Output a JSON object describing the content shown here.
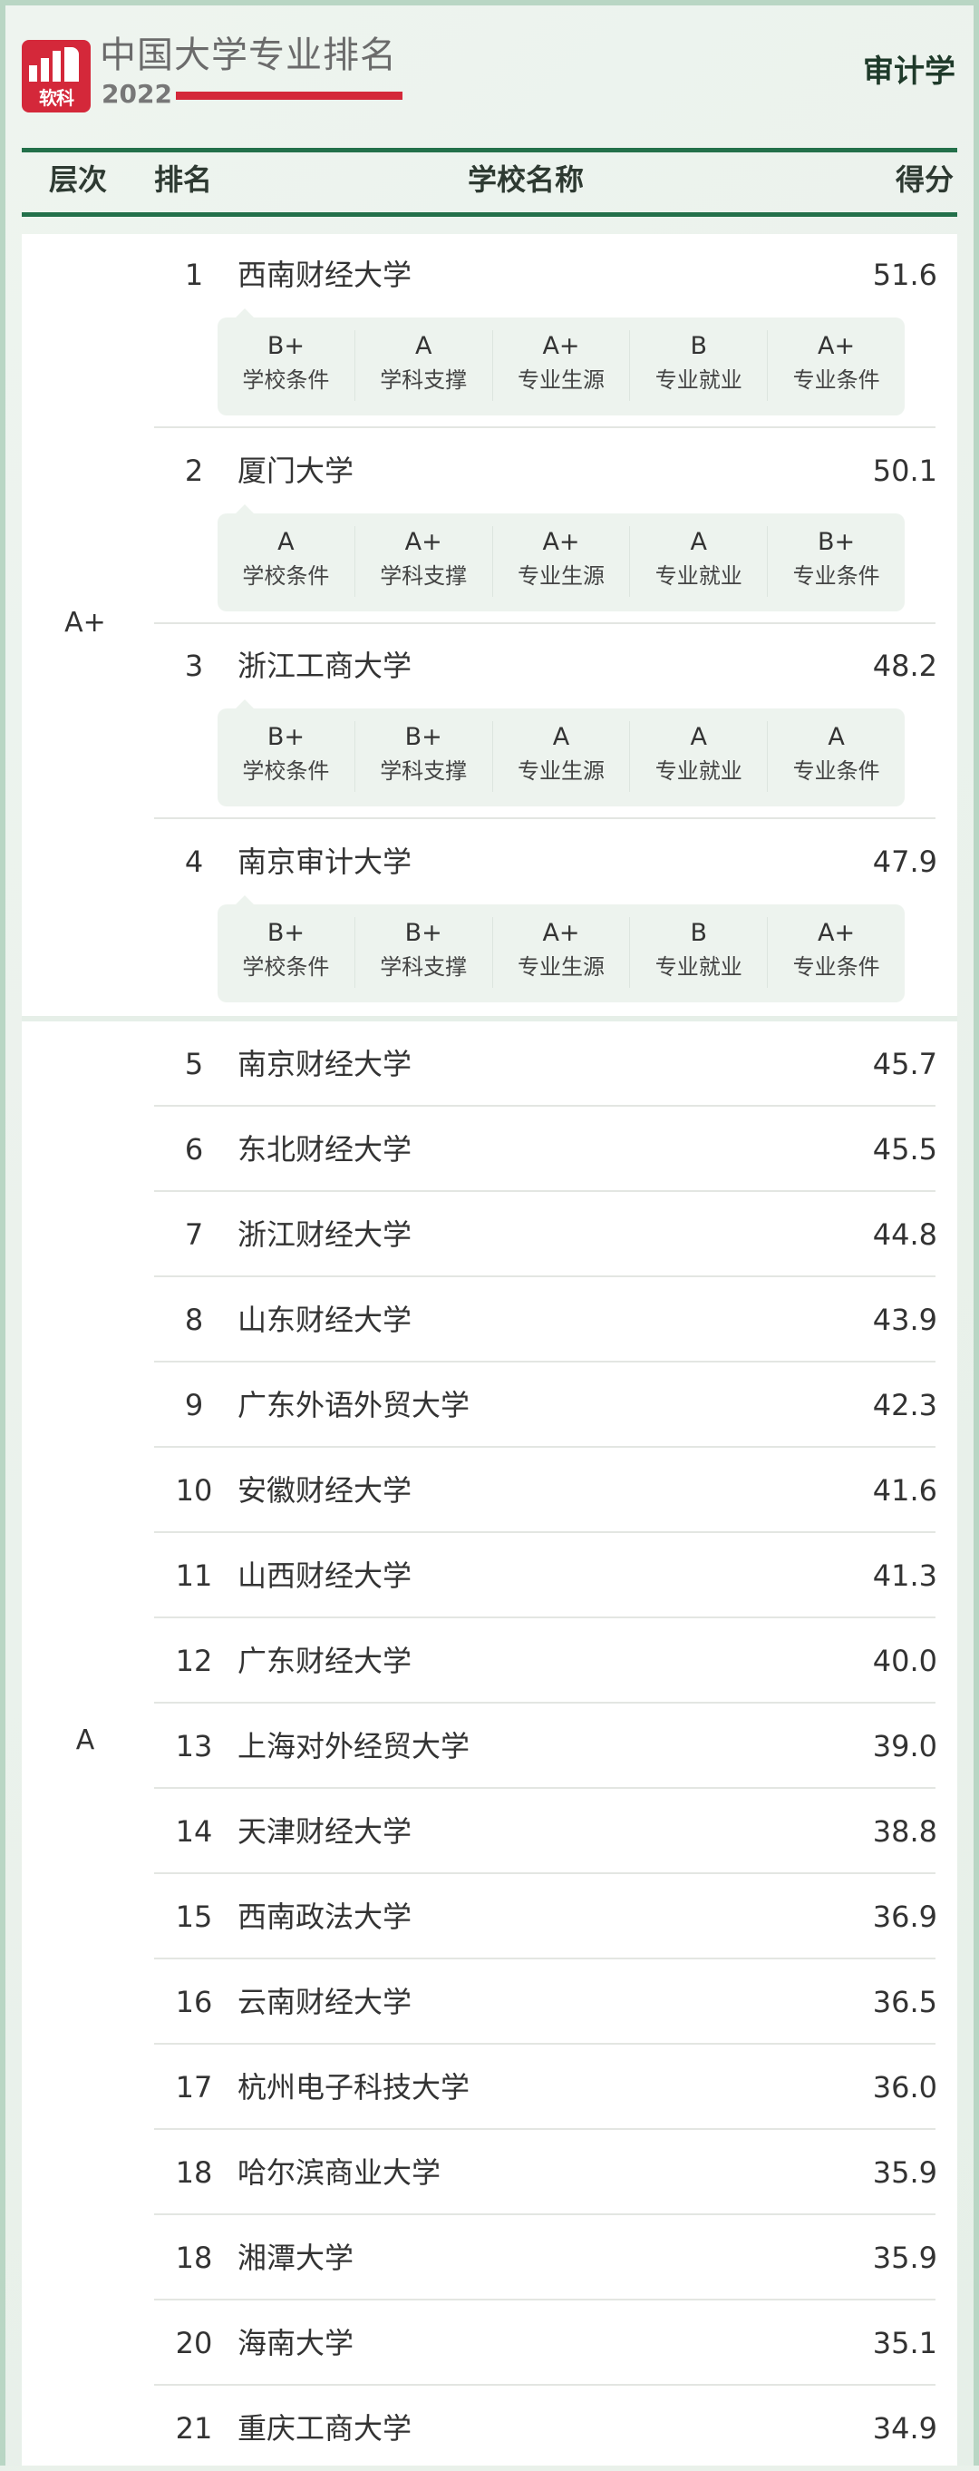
{
  "header": {
    "logo_text": "软科",
    "brand": "中国大学专业排名",
    "year": "2022",
    "subject": "审计学",
    "brand_color": "#d4283a",
    "accent_color": "#23704a"
  },
  "columns": {
    "tier": "层次",
    "rank": "排名",
    "name": "学校名称",
    "score": "得分"
  },
  "grade_labels": [
    "学校条件",
    "学科支撑",
    "专业生源",
    "专业就业",
    "专业条件"
  ],
  "groups": [
    {
      "tier": "A+",
      "rows": [
        {
          "rank": "1",
          "name": "西南财经大学",
          "score": "51.6",
          "grades": [
            "B+",
            "A",
            "A+",
            "B",
            "A+"
          ]
        },
        {
          "rank": "2",
          "name": "厦门大学",
          "score": "50.1",
          "grades": [
            "A",
            "A+",
            "A+",
            "A",
            "B+"
          ]
        },
        {
          "rank": "3",
          "name": "浙江工商大学",
          "score": "48.2",
          "grades": [
            "B+",
            "B+",
            "A",
            "A",
            "A"
          ]
        },
        {
          "rank": "4",
          "name": "南京审计大学",
          "score": "47.9",
          "grades": [
            "B+",
            "B+",
            "A+",
            "B",
            "A+"
          ]
        }
      ]
    },
    {
      "tier": "A",
      "rows": [
        {
          "rank": "5",
          "name": "南京财经大学",
          "score": "45.7"
        },
        {
          "rank": "6",
          "name": "东北财经大学",
          "score": "45.5"
        },
        {
          "rank": "7",
          "name": "浙江财经大学",
          "score": "44.8"
        },
        {
          "rank": "8",
          "name": "山东财经大学",
          "score": "43.9"
        },
        {
          "rank": "9",
          "name": "广东外语外贸大学",
          "score": "42.3"
        },
        {
          "rank": "10",
          "name": "安徽财经大学",
          "score": "41.6"
        },
        {
          "rank": "11",
          "name": "山西财经大学",
          "score": "41.3"
        },
        {
          "rank": "12",
          "name": "广东财经大学",
          "score": "40.0"
        },
        {
          "rank": "13",
          "name": "上海对外经贸大学",
          "score": "39.0"
        },
        {
          "rank": "14",
          "name": "天津财经大学",
          "score": "38.8"
        },
        {
          "rank": "15",
          "name": "西南政法大学",
          "score": "36.9"
        },
        {
          "rank": "16",
          "name": "云南财经大学",
          "score": "36.5"
        },
        {
          "rank": "17",
          "name": "杭州电子科技大学",
          "score": "36.0"
        },
        {
          "rank": "18",
          "name": "哈尔滨商业大学",
          "score": "35.9"
        },
        {
          "rank": "18",
          "name": "湘潭大学",
          "score": "35.9"
        },
        {
          "rank": "20",
          "name": "海南大学",
          "score": "35.1"
        },
        {
          "rank": "21",
          "name": "重庆工商大学",
          "score": "34.9"
        }
      ]
    }
  ]
}
